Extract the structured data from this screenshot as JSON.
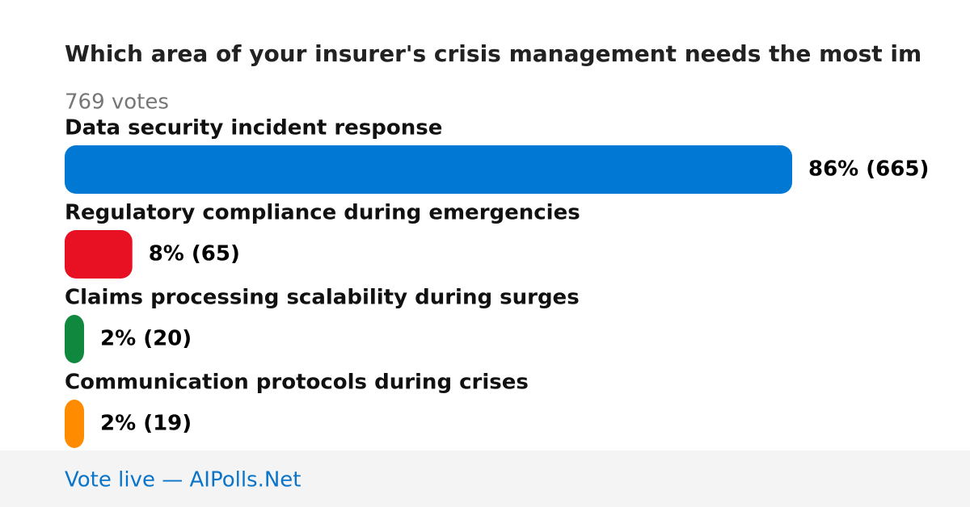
{
  "chart_data": {
    "type": "bar",
    "orientation": "horizontal",
    "title": "Which area of your insurer's crisis management needs the most im",
    "total": "769 votes",
    "categories": [
      "Data security incident response",
      "Regulatory compliance during emergencies",
      "Claims processing scalability during surges",
      "Communication protocols during crises"
    ],
    "values": [
      86,
      8,
      2,
      2
    ],
    "value_labels": [
      "86% (665)",
      "8% (65)",
      "2% (20)",
      "2% (19)"
    ],
    "colors": [
      "#0078d4",
      "#e81123",
      "#10893e",
      "#ff8c00"
    ],
    "footer": "Vote live — AIPolls.Net"
  }
}
